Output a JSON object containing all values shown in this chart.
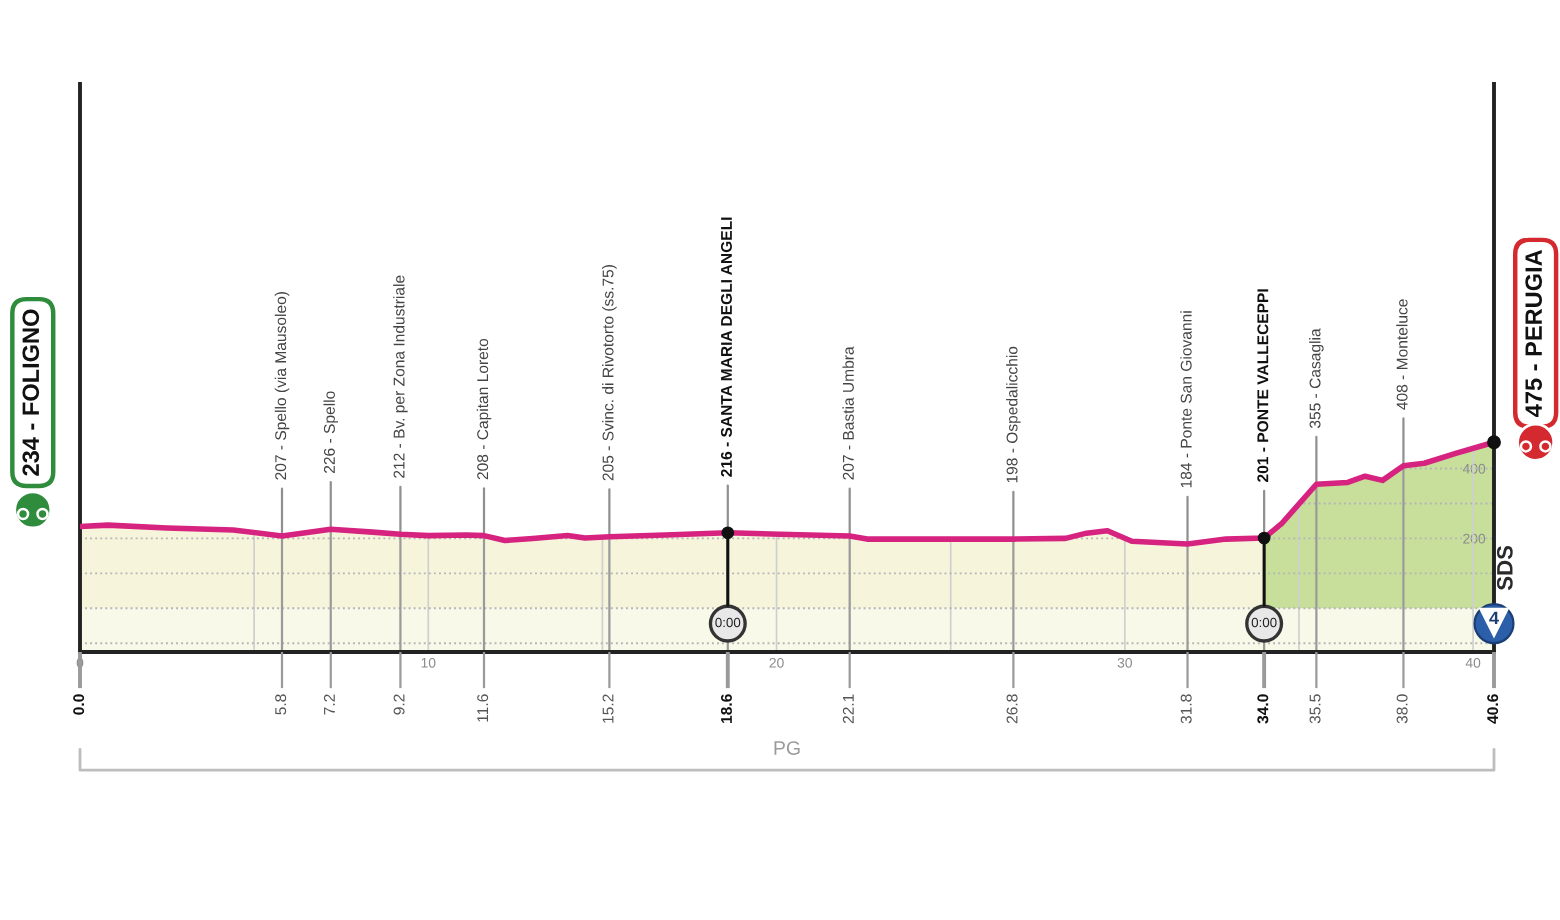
{
  "chart_data": {
    "type": "area",
    "series": [
      {
        "type": "line",
        "color": "#d6237f",
        "x": [
          0,
          0.8,
          2.5,
          4.4,
          5.8,
          7.2,
          8.4,
          9.2,
          10,
          11.1,
          11.6,
          12.2,
          13,
          14,
          14.5,
          15.2,
          16.8,
          18.6,
          20.1,
          22.1,
          22.6,
          24.5,
          26.8,
          28.3,
          28.9,
          29.5,
          30.2,
          31.8,
          32.9,
          34,
          34.5,
          35.5,
          36.4,
          36.9,
          37.4,
          38,
          38.6,
          39.5,
          40.6
        ],
        "values": [
          234,
          238,
          230,
          224,
          207,
          226,
          218,
          212,
          208,
          210,
          208,
          194,
          200,
          208,
          201,
          205,
          210,
          216,
          212,
          207,
          198,
          198,
          198,
          200,
          215,
          222,
          192,
          184,
          198,
          201,
          242,
          355,
          360,
          378,
          366,
          408,
          415,
          443,
          475
        ]
      },
      {
        "color": "#f6f5dc",
        "x": [
          0,
          0.8,
          2.5,
          4.4,
          5.8,
          7.2,
          8.4,
          9.2,
          10,
          11.1,
          11.6,
          12.2,
          13,
          14,
          14.5,
          15.2,
          16.8,
          18.6,
          20.1,
          22.1,
          22.6,
          24.5,
          26.8,
          28.3,
          28.9,
          29.5,
          30.2,
          31.8,
          32.9,
          34
        ],
        "values": [
          234,
          238,
          230,
          224,
          207,
          226,
          218,
          212,
          208,
          210,
          208,
          194,
          200,
          208,
          201,
          205,
          210,
          216,
          212,
          207,
          198,
          198,
          198,
          200,
          215,
          222,
          192,
          184,
          198,
          201
        ]
      },
      {
        "color": "#c8df9c",
        "x": [
          34,
          34.5,
          35.5,
          36.4,
          36.9,
          37.4,
          38,
          38.6,
          39.5,
          40.6
        ],
        "values": [
          201,
          242,
          355,
          360,
          378,
          366,
          408,
          415,
          443,
          475
        ]
      }
    ],
    "bands": [
      {
        "axis": "y",
        "from": -125,
        "to": 0,
        "color": "#f9f9e9"
      }
    ],
    "xlim": [
      0,
      40.6
    ],
    "xticks": [
      0,
      {
        "value": 5,
        "label": null
      },
      10,
      {
        "value": 15,
        "label": null
      },
      20,
      {
        "value": 25,
        "label": null
      },
      30,
      {
        "value": 35,
        "label": null
      },
      40
    ],
    "x2lim": [
      0,
      40.6
    ],
    "x2ticks": [
      {
        "value": 0,
        "label": "0.0"
      },
      5.8,
      7.2,
      9.2,
      11.6,
      15.2,
      18.6,
      22.1,
      26.8,
      31.8,
      {
        "value": 34,
        "label": "34.0"
      },
      35.5,
      {
        "value": 38,
        "label": "38.0"
      },
      40.6
    ],
    "ylim": [
      -125,
      1500
    ],
    "yticks": [
      {
        "value": -100,
        "label": null
      },
      {
        "value": 0,
        "label": null
      },
      {
        "value": 100,
        "label": null
      },
      200,
      {
        "value": 300,
        "label": null
      },
      400
    ],
    "grid": true,
    "annotations": [
      "234 - FOLIGNO",
      {
        "text": "207 - Spello (via Mausoleo)",
        "x": 5.8,
        "y": 207
      },
      {
        "text": "226 - Spello",
        "x": 7.2,
        "y": 226
      },
      {
        "text": "212 - Bv. per Zona Industriale",
        "x": 9.2,
        "y": 212
      },
      {
        "text": "208 - Capitan Loreto",
        "x": 11.6,
        "y": 208
      },
      {
        "text": "205 - Svinc. di Rivotorto (ss.75)",
        "x": 15.2,
        "y": 205
      },
      {
        "text": "216 - SANTA MARIA DEGLI ANGELI",
        "x": 18.6,
        "y": 216
      },
      {
        "text": "207 - Bastia Umbra",
        "x": 22.1,
        "y": 207
      },
      {
        "text": "198 - Ospedalicchio",
        "x": 26.8,
        "y": 198
      },
      {
        "text": "184 - Ponte San Giovanni",
        "x": 31.8,
        "y": 184
      },
      {
        "text": "201 - PONTE VALLECEPPI",
        "x": 34,
        "y": 201
      },
      {
        "text": "355 - Casaglia",
        "x": 35.5,
        "y": 355
      },
      {
        "text": "408 - Monteluce",
        "x": 38,
        "y": 408
      },
      "475 - PERUGIA",
      {
        "text": "0:00",
        "x": 18.6
      },
      {
        "text": "0:00",
        "x": 34
      },
      "SDS",
      "4",
      "PG"
    ]
  }
}
